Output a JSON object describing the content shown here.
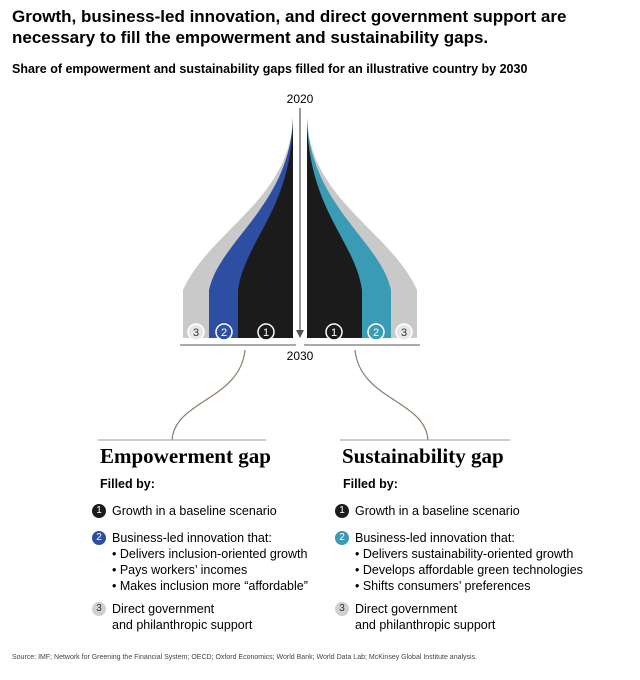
{
  "title": "Growth, business-led innovation, and direct government support are necessary to fill the empowerment and sustainability gaps.",
  "subtitle": "Share of empowerment and sustainability gaps filled for an illustrative country by 2030",
  "diagram": {
    "year_top": "2020",
    "year_bottom": "2030",
    "left_badges": [
      "3",
      "2",
      "1"
    ],
    "right_badges": [
      "1",
      "2",
      "3"
    ]
  },
  "empowerment": {
    "title": "Empowerment gap",
    "filled_by": "Filled by:",
    "item1": {
      "num": "1",
      "label": "Growth in a baseline scenario"
    },
    "item2": {
      "num": "2",
      "label": "Business-led innovation that:",
      "bullets": [
        "• Delivers inclusion-oriented growth",
        "• Pays workers’ incomes",
        "• Makes inclusion more “affordable”"
      ]
    },
    "item3": {
      "num": "3",
      "label": "Direct government",
      "label2": "and philanthropic support"
    }
  },
  "sustainability": {
    "title": "Sustainability gap",
    "filled_by": "Filled by:",
    "item1": {
      "num": "1",
      "label": "Growth in a baseline scenario"
    },
    "item2": {
      "num": "2",
      "label": "Business-led innovation that:",
      "bullets": [
        "• Delivers sustainability-oriented growth",
        "• Develops affordable green technologies",
        "• Shifts consumers’ preferences"
      ]
    },
    "item3": {
      "num": "3",
      "label": "Direct government",
      "label2": "and philanthropic support"
    }
  },
  "source": "Source: IMF; Network for Greening the Financial System; OECD; Oxford Economics; World Bank; World Data Lab; McKinsey Global Institute analysis.",
  "colors": {
    "gray": "#c9c9c9",
    "empowerment_blue": "#2e4ea3",
    "sustainability_teal": "#3a9bb5",
    "black": "#1b1b1b"
  }
}
